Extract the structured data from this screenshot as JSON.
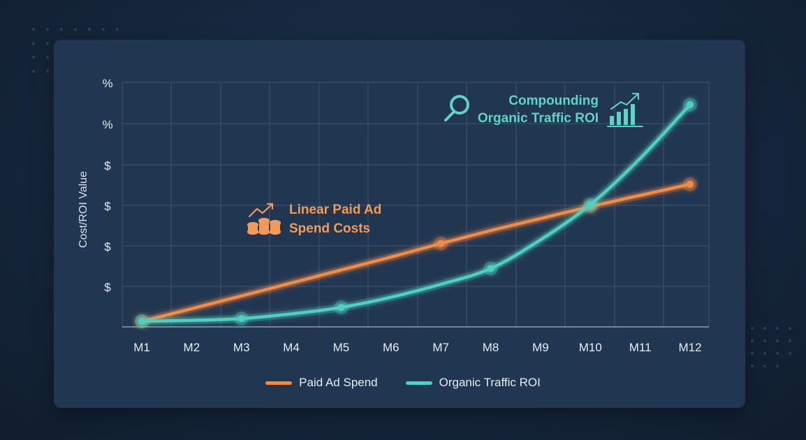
{
  "chart_data": {
    "type": "line",
    "x": [
      "M1",
      "M2",
      "M3",
      "M4",
      "M5",
      "M6",
      "M7",
      "M8",
      "M9",
      "M10",
      "M11",
      "M12"
    ],
    "y_tick_labels": [
      "%",
      "%",
      "$",
      "$",
      "$",
      "$"
    ],
    "ylabel": "Cost/ROI Value",
    "xlabel": "",
    "grid": true,
    "legend_position": "bottom",
    "series": [
      {
        "name": "Paid Ad Spend",
        "color": "#f28c45",
        "values": [
          0,
          0.68,
          1.37,
          2.07,
          2.77,
          3.47,
          4.2,
          4.9,
          5.55,
          6.2,
          6.8,
          7.4
        ],
        "markers": [
          0,
          6,
          9,
          11
        ]
      },
      {
        "name": "Organic Traffic ROI",
        "color": "#4fd1c0",
        "values": [
          0,
          0.05,
          0.15,
          0.4,
          0.75,
          1.3,
          2.0,
          2.85,
          4.4,
          6.3,
          8.8,
          11.7
        ],
        "markers": [
          0,
          2,
          4,
          7,
          9,
          11
        ]
      }
    ],
    "ylim": [
      -0.3,
      12.9
    ],
    "annotations": [
      {
        "text_lines": [
          "Linear Paid Ad",
          "Spend Costs"
        ],
        "color": "#f29a58"
      },
      {
        "text_lines": [
          "Compounding",
          "Organic Traffic ROI"
        ],
        "color": "#5fd4c4"
      }
    ]
  }
}
